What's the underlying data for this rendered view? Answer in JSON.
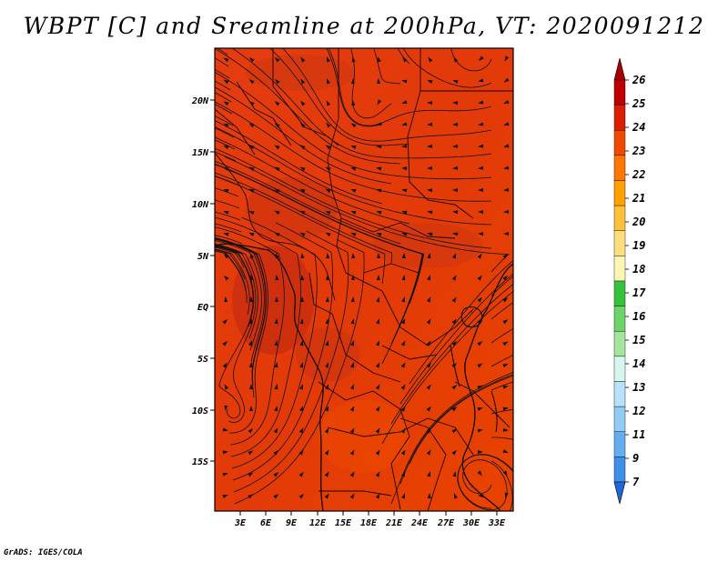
{
  "title": "WBPT [C] and Sreamline at 200hPa, VT: 2020091212",
  "footer": "GrADS: IGES/COLA",
  "map": {
    "lon_labels": [
      "3E",
      "6E",
      "9E",
      "12E",
      "15E",
      "18E",
      "21E",
      "24E",
      "27E",
      "30E",
      "33E"
    ],
    "lat_labels": [
      "20N",
      "15N",
      "10N",
      "5N",
      "EQ",
      "5S",
      "10S",
      "15S"
    ]
  },
  "colorbar": {
    "labels": [
      "26",
      "25",
      "24",
      "23",
      "22",
      "21",
      "20",
      "19",
      "18",
      "17",
      "16",
      "15",
      "14",
      "13",
      "12",
      "11",
      "9",
      "7"
    ],
    "colors": [
      "#a50000",
      "#c00000",
      "#db1d00",
      "#f04a00",
      "#ff7600",
      "#ff9f00",
      "#ffc13a",
      "#ffdf7d",
      "#fff6b3",
      "#37c23d",
      "#6ed36a",
      "#a4e59d",
      "#d7f6ee",
      "#b8e2fb",
      "#92cbf6",
      "#66adf0",
      "#3f8fe8",
      "#1f67d8"
    ]
  }
}
